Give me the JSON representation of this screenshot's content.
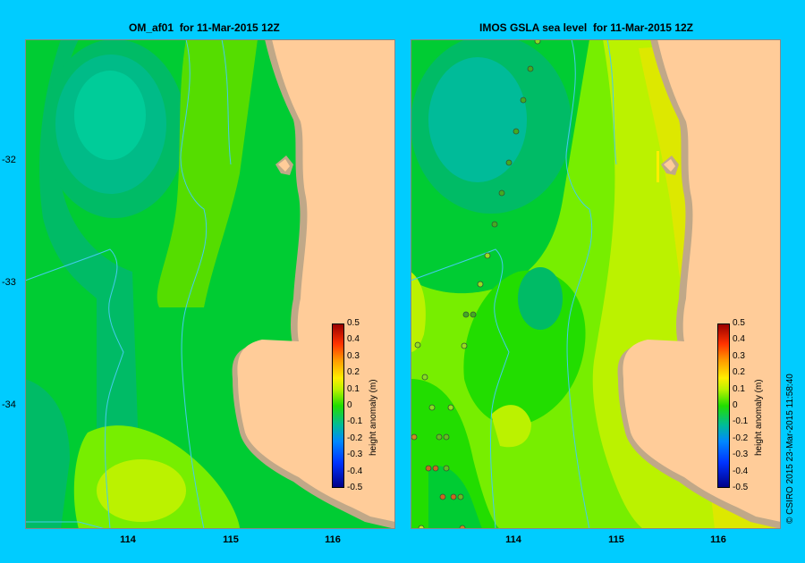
{
  "panels": [
    {
      "title": "OM_af01  for 11-Mar-2015 12Z",
      "colorbar_label": "height anomaly (m)",
      "x_ticks": [
        "114",
        "115",
        "116"
      ],
      "y_ticks": [
        "-32",
        "-33",
        "-34"
      ]
    },
    {
      "title": "IMOS GSLA sea level  for 11-Mar-2015 12Z",
      "colorbar_label": "height anomaly (m)",
      "x_ticks": [
        "114",
        "115",
        "116"
      ],
      "y_ticks": []
    }
  ],
  "colorbar": {
    "ticks": [
      "0.5",
      "0.4",
      "0.3",
      "0.2",
      "0.1",
      "0",
      "-0.1",
      "-0.2",
      "-0.3",
      "-0.4",
      "-0.5"
    ],
    "range": [
      -0.5,
      0.5
    ]
  },
  "credit": "© CSIRO 2015   23-Mar-2015 11:58:40",
  "colors": {
    "background": "#00ccff",
    "land": "#ffcc99",
    "shoreline": "#c0a888",
    "water_minus015": "#00bb99",
    "water_minus01": "#00bb66",
    "water_minus005": "#00cc33",
    "water_0": "#22dd00",
    "water_005": "#77ee00",
    "water_01": "#bbf200",
    "water_015": "#dde800",
    "water_020": "#ffee00"
  }
}
